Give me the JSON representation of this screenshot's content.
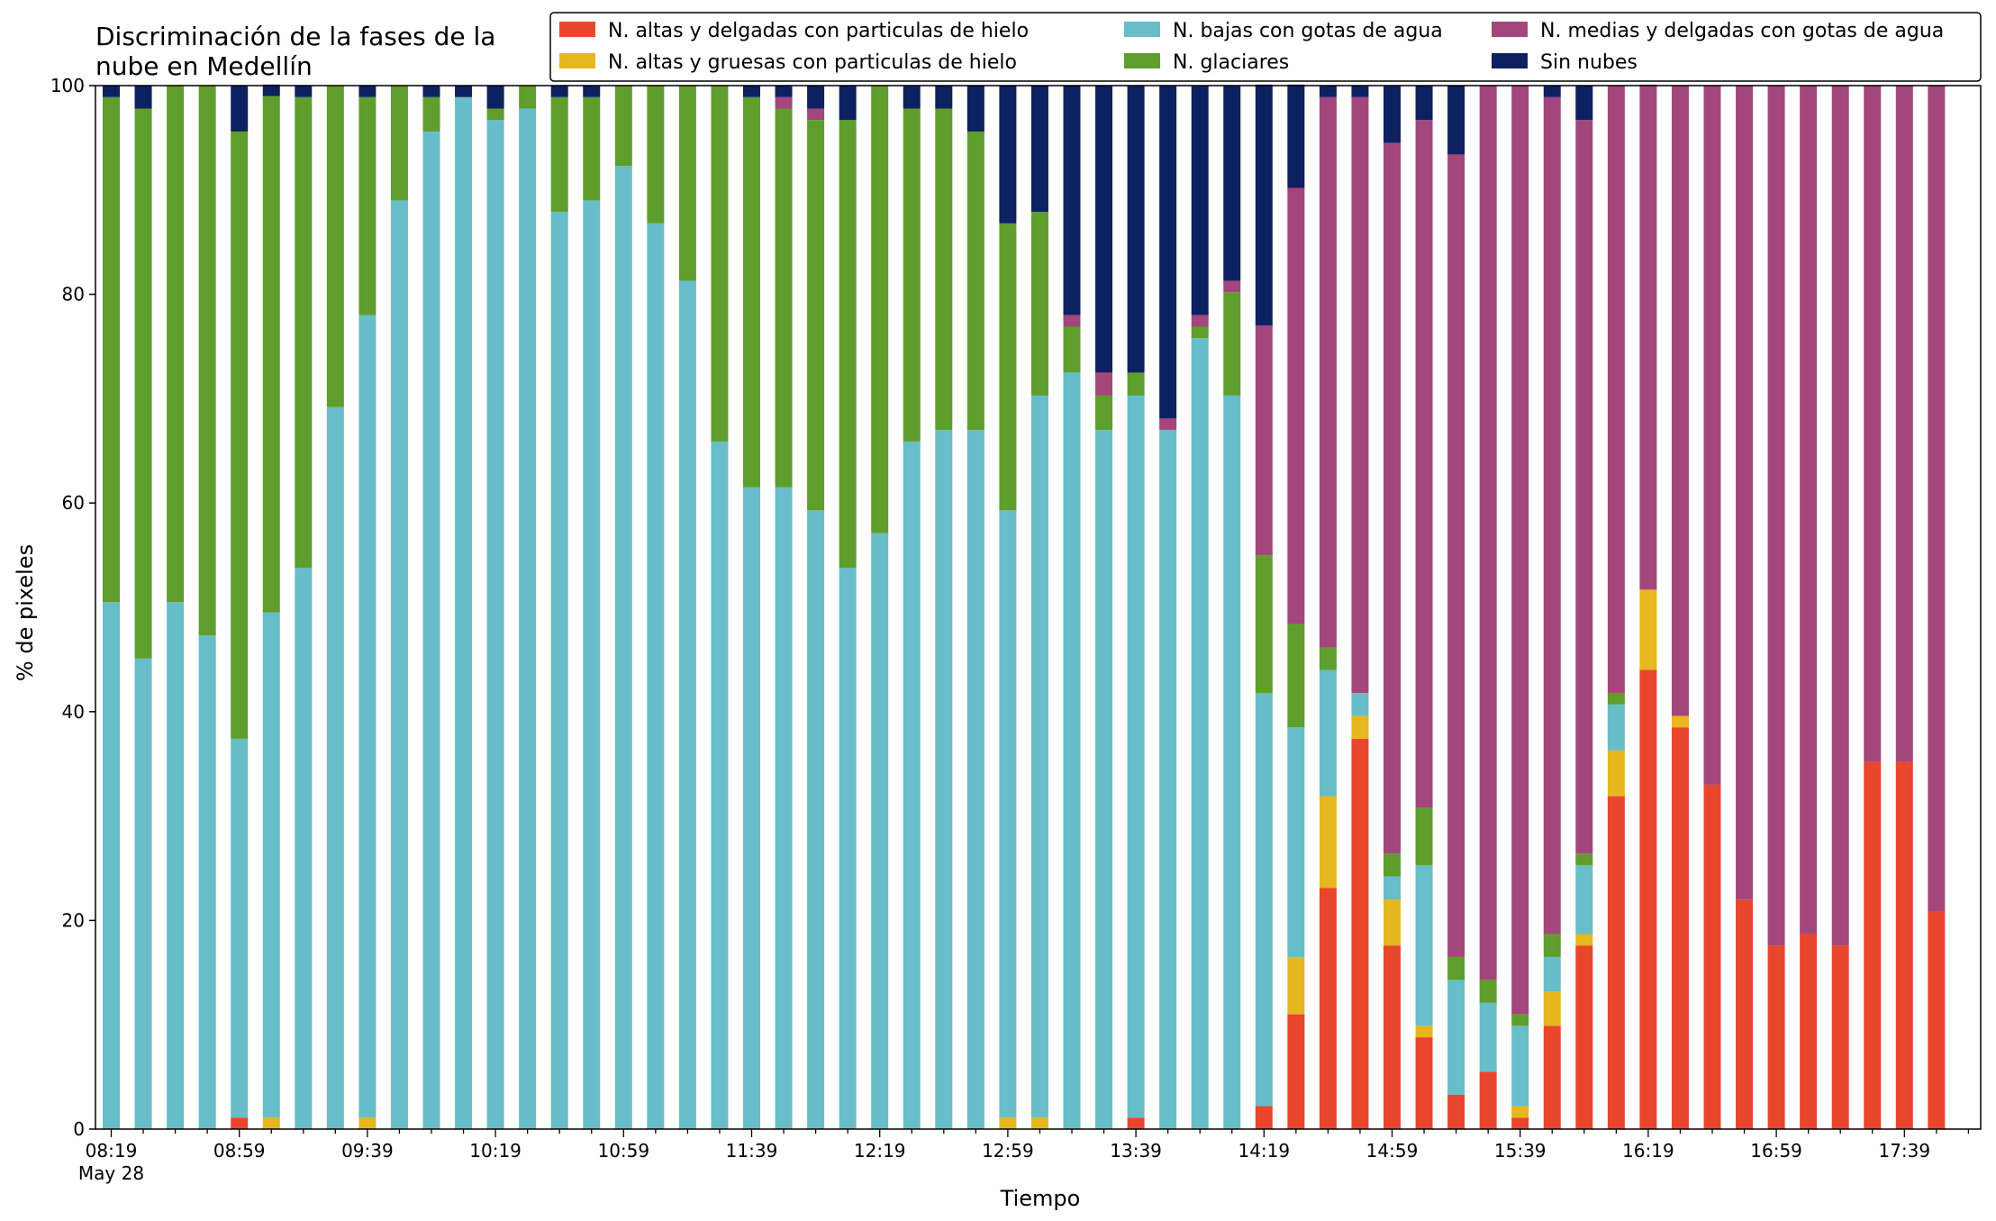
{
  "chart_data": {
    "type": "bar",
    "stacked": true,
    "title_line1": "Discriminación de la fases de la",
    "title_line2": "nube en Medellín",
    "xlabel": "Tiempo",
    "ylabel": "% de pixeles",
    "ylim": [
      0,
      100
    ],
    "yticks": [
      "0",
      "20",
      "40",
      "60",
      "80",
      "100"
    ],
    "xtick_labels": [
      "08:19",
      "08:59",
      "09:39",
      "10:19",
      "10:59",
      "11:39",
      "12:19",
      "12:59",
      "13:39",
      "14:19",
      "14:59",
      "15:39",
      "16:19",
      "16:59",
      "17:39"
    ],
    "xtick_sublabel": "May 28",
    "legend_placement": "top-right",
    "x": [
      "08:19",
      "08:29",
      "08:39",
      "08:49",
      "08:59",
      "09:09",
      "09:19",
      "09:29",
      "09:39",
      "09:49",
      "09:59",
      "10:09",
      "10:19",
      "10:29",
      "10:39",
      "10:49",
      "10:59",
      "11:09",
      "11:19",
      "11:29",
      "11:39",
      "11:49",
      "11:59",
      "12:09",
      "12:19",
      "12:29",
      "12:39",
      "12:49",
      "12:59",
      "13:09",
      "13:19",
      "13:29",
      "13:39",
      "13:49",
      "13:59",
      "14:09",
      "14:19",
      "14:29",
      "14:39",
      "14:49",
      "14:59",
      "15:09",
      "15:19",
      "15:29",
      "15:39",
      "15:49",
      "15:59",
      "16:09",
      "16:19",
      "16:29",
      "16:39",
      "16:49",
      "16:59",
      "17:09",
      "17:19",
      "17:29",
      "17:39",
      "17:49"
    ],
    "series": [
      {
        "name": "N. altas y delgadas con particulas de hielo",
        "color": "#e8472b",
        "values": [
          0,
          0,
          0,
          0,
          1.1,
          0,
          0,
          0,
          0,
          0,
          0,
          0,
          0,
          0,
          0,
          0,
          0,
          0,
          0,
          0,
          0,
          0,
          0,
          0,
          0,
          0,
          0,
          0,
          0,
          0,
          0,
          0,
          1.1,
          0,
          0,
          0,
          2.2,
          11,
          23.1,
          37.4,
          17.6,
          8.8,
          3.3,
          5.5,
          1.1,
          9.9,
          17.6,
          31.9,
          44,
          38.5,
          33,
          22,
          17.6,
          18.7,
          17.6,
          35.2,
          35.2,
          20.9
        ]
      },
      {
        "name": "N. altas y gruesas con particulas de hielo",
        "color": "#e6b71e",
        "values": [
          0,
          0,
          0,
          0,
          0,
          1.1,
          0,
          0,
          1.1,
          0,
          0,
          0,
          0,
          0,
          0,
          0,
          0,
          0,
          0,
          0,
          0,
          0,
          0,
          0,
          0,
          0,
          0,
          0,
          1.1,
          1.1,
          0,
          0,
          0,
          0,
          0,
          0,
          0,
          5.5,
          8.8,
          2.2,
          4.4,
          1.1,
          0,
          0,
          1.1,
          3.3,
          1.1,
          4.4,
          7.7,
          1.1,
          0,
          0,
          0,
          0,
          0,
          0,
          0,
          0
        ]
      },
      {
        "name": "N. bajas con gotas de agua",
        "color": "#67bdc8",
        "values": [
          50.5,
          45.1,
          50.5,
          47.3,
          36.3,
          48.4,
          53.8,
          69.2,
          76.9,
          89,
          95.6,
          98.9,
          96.7,
          97.8,
          87.9,
          89,
          92.3,
          86.8,
          81.3,
          65.9,
          61.5,
          61.5,
          59.3,
          53.8,
          57.1,
          65.9,
          67,
          67,
          58.2,
          69.2,
          72.5,
          67,
          69.2,
          67,
          75.8,
          70.3,
          39.6,
          22,
          12.1,
          2.2,
          2.2,
          15.4,
          11,
          6.6,
          7.7,
          3.3,
          6.6,
          4.4,
          0,
          0,
          0,
          0,
          0,
          0,
          0,
          0,
          0,
          0
        ]
      },
      {
        "name": "N. glaciares",
        "color": "#5e9e2c",
        "values": [
          48.4,
          52.7,
          49.5,
          52.7,
          58.2,
          49.5,
          45.1,
          30.8,
          20.9,
          11,
          3.3,
          0,
          1.1,
          2.2,
          11,
          9.9,
          7.7,
          13.2,
          18.7,
          34.1,
          37.4,
          36.3,
          37.4,
          42.9,
          42.9,
          31.9,
          30.8,
          28.6,
          27.5,
          17.6,
          4.4,
          3.3,
          2.2,
          0,
          1.1,
          9.9,
          13.2,
          9.9,
          2.2,
          0,
          2.2,
          5.5,
          2.2,
          2.2,
          1.1,
          2.2,
          1.1,
          1.1,
          0,
          0,
          0,
          0,
          0,
          0,
          0,
          0,
          0,
          0
        ]
      },
      {
        "name": "N. medias y delgadas con gotas de agua",
        "color": "#a3467c",
        "values": [
          0,
          0,
          0,
          0,
          0,
          0,
          0,
          0,
          0,
          0,
          0,
          0,
          0,
          0,
          0,
          0,
          0,
          0,
          0,
          0,
          0,
          1.1,
          1.1,
          0,
          0,
          0,
          0,
          0,
          0,
          0,
          1.1,
          2.2,
          0,
          1.1,
          1.1,
          1.1,
          22,
          41.8,
          52.7,
          57.1,
          68.1,
          65.9,
          76.9,
          85.7,
          89,
          80.2,
          70.3,
          58.2,
          48.4,
          60.4,
          67,
          78,
          82.4,
          81.3,
          82.4,
          64.8,
          64.8,
          79.1
        ]
      },
      {
        "name": "Sin nubes",
        "color": "#0d2060",
        "values": [
          1.1,
          2.2,
          0,
          0,
          4.4,
          1.1,
          1.1,
          0,
          1.1,
          0,
          1.1,
          1.1,
          2.2,
          0,
          1.1,
          1.1,
          0,
          0,
          0,
          0,
          1.1,
          1.1,
          2.2,
          3.3,
          0,
          2.2,
          2.2,
          4.4,
          13.2,
          12.1,
          22,
          27.5,
          27.5,
          31.9,
          22,
          18.7,
          23.1,
          9.9,
          1.1,
          1.1,
          5.5,
          3.3,
          6.6,
          0,
          0,
          1.1,
          3.3,
          0,
          0,
          0,
          0,
          0,
          0,
          0,
          0,
          0,
          0,
          0
        ]
      }
    ]
  }
}
